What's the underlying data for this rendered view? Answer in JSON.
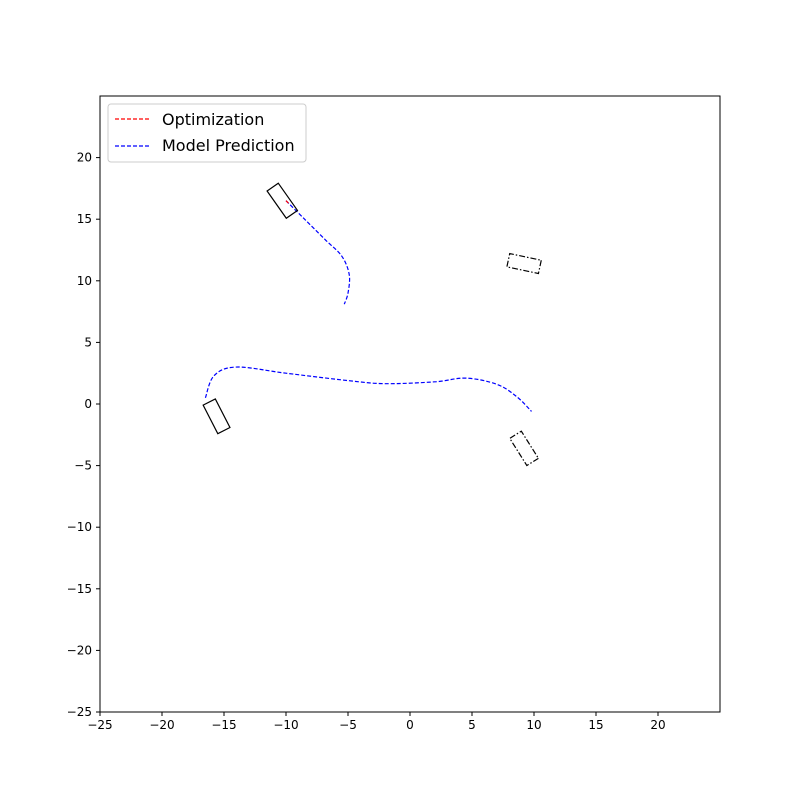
{
  "chart_data": {
    "type": "line",
    "title": "",
    "xlabel": "",
    "ylabel": "",
    "xlim": [
      -25,
      25
    ],
    "ylim": [
      -25,
      25
    ],
    "xticks": [
      -25,
      -20,
      -15,
      -10,
      -5,
      0,
      5,
      10,
      15,
      20
    ],
    "yticks": [
      -25,
      -20,
      -15,
      -10,
      -5,
      0,
      5,
      10,
      15,
      20
    ],
    "grid": false,
    "legend_position": "top-left",
    "legend": [
      {
        "label": "Optimization",
        "color": "#ff0000",
        "style": "dashed"
      },
      {
        "label": "Model Prediction",
        "color": "#0000ff",
        "style": "dashed"
      }
    ],
    "series": [
      {
        "name": "Model Prediction",
        "color": "#0000ff",
        "style": "dashed",
        "points": [
          [
            -10,
            16.5
          ],
          [
            -8.5,
            15
          ],
          [
            -6.8,
            13.3
          ],
          [
            -5.5,
            12
          ],
          [
            -4.9,
            10.5
          ],
          [
            -5,
            9
          ],
          [
            -5.3,
            8.1
          ]
        ]
      },
      {
        "name": "Model Prediction",
        "color": "#0000ff",
        "style": "dashed",
        "points": [
          [
            -16.5,
            0.5
          ],
          [
            -15.8,
            2.3
          ],
          [
            -14,
            3
          ],
          [
            -10,
            2.5
          ],
          [
            -5,
            1.9
          ],
          [
            -2,
            1.65
          ],
          [
            2,
            1.8
          ],
          [
            4.5,
            2.1
          ],
          [
            7,
            1.6
          ],
          [
            8.6,
            0.6
          ],
          [
            9.8,
            -0.6
          ]
        ]
      },
      {
        "name": "Optimization",
        "color": "#ff0000",
        "style": "dashed",
        "points": [
          [
            -10,
            16.5
          ],
          [
            -9.8,
            16.3
          ]
        ]
      }
    ],
    "vehicles": [
      {
        "center": [
          -10.3,
          16.5
        ],
        "length": 2.7,
        "width": 1.1,
        "angle_deg": -55,
        "style": "solid"
      },
      {
        "center": [
          -15.6,
          -1
        ],
        "length": 2.6,
        "width": 1.1,
        "angle_deg": -63,
        "style": "solid"
      },
      {
        "center": [
          9.2,
          11.4
        ],
        "length": 2.6,
        "width": 1.1,
        "angle_deg": -12,
        "style": "dashdot"
      },
      {
        "center": [
          9.2,
          -3.6
        ],
        "length": 2.6,
        "width": 1.1,
        "angle_deg": -58,
        "style": "dashdot"
      }
    ]
  }
}
